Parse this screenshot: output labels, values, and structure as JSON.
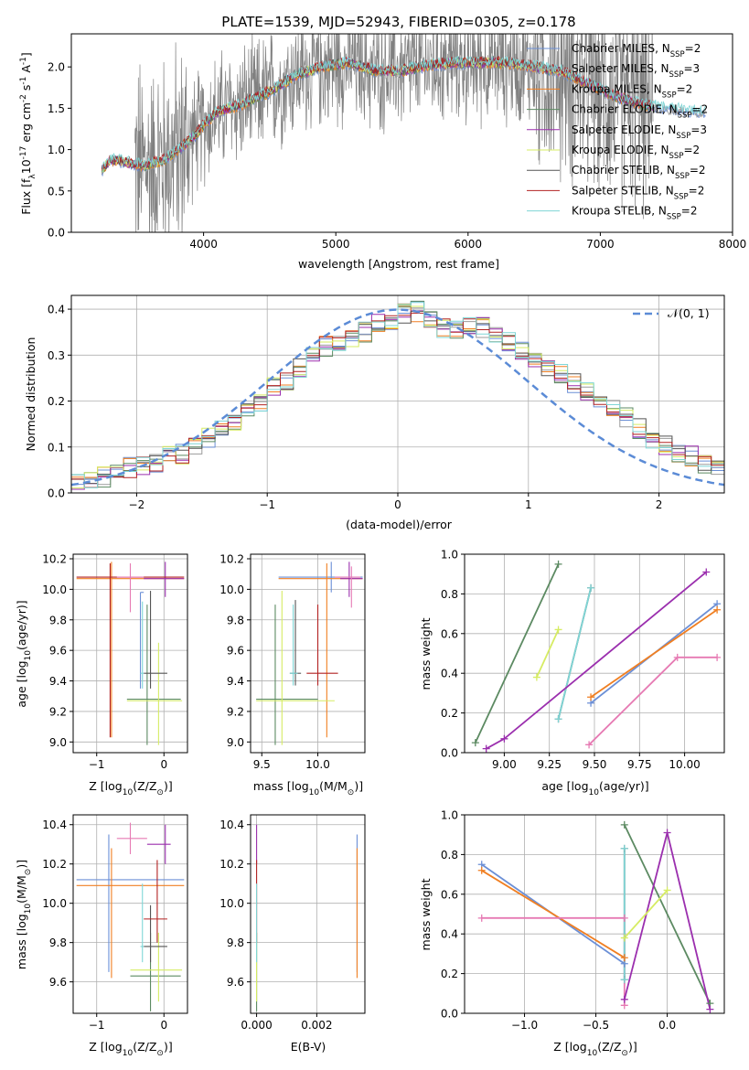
{
  "figure": {
    "title": "PLATE=1539, MJD=52943, FIBERID=0305, z=0.178"
  },
  "colors": {
    "cm": "#6b8fd6",
    "sm": "#9b9b9b",
    "km": "#f07f22",
    "ce": "#5c8a62",
    "se": "#9b2fae",
    "ke": "#d6ec63",
    "cs": "#555555",
    "ss": "#b22222",
    "ks": "#7fd6d6",
    "pink": "#e67ab3",
    "data": "#808080",
    "normal": "#5b8bd6"
  },
  "chart_data": [
    {
      "id": "spectrum",
      "type": "line",
      "xlabel": "wavelength [Angstrom, rest frame]",
      "ylabel": "Flux [f$_\\lambda$10$^{-17}$ erg cm$^{-2}$ s$^{-1}$ A$^{-1}$]",
      "xlim": [
        3000,
        8000
      ],
      "ylim": [
        0,
        2.4
      ],
      "xticks": [
        "4000",
        "5000",
        "6000",
        "7000",
        "8000"
      ],
      "yticks": [
        "0.0",
        "0.5",
        "1.0",
        "1.5",
        "2.0"
      ],
      "legend_placement": "right",
      "legend": [
        {
          "key": "cm",
          "label": "Chabrier MILES, N",
          "sub": "SSP",
          "n": "=2"
        },
        {
          "key": "sm",
          "label": "Salpeter MILES, N",
          "sub": "SSP",
          "n": "=3"
        },
        {
          "key": "km",
          "label": "Kroupa MILES, N",
          "sub": "SSP",
          "n": "=2"
        },
        {
          "key": "ce",
          "label": "Chabrier ELODIE, N",
          "sub": "SSP",
          "n": "=2"
        },
        {
          "key": "se",
          "label": "Salpeter ELODIE, N",
          "sub": "SSP",
          "n": "=3"
        },
        {
          "key": "ke",
          "label": "Kroupa ELODIE, N",
          "sub": "SSP",
          "n": "=2"
        },
        {
          "key": "cs",
          "label": "Chabrier STELIB, N",
          "sub": "SSP",
          "n": "=2"
        },
        {
          "key": "ss",
          "label": "Salpeter STELIB, N",
          "sub": "SSP",
          "n": "=2"
        },
        {
          "key": "ks",
          "label": "Kroupa STELIB, N",
          "sub": "SSP",
          "n": "=2"
        }
      ],
      "model_trend": [
        [
          3230,
          0.75
        ],
        [
          3300,
          0.88
        ],
        [
          3400,
          0.85
        ],
        [
          3550,
          0.8
        ],
        [
          3700,
          0.87
        ],
        [
          3850,
          1.05
        ],
        [
          3950,
          1.2
        ],
        [
          4000,
          1.3
        ],
        [
          4100,
          1.45
        ],
        [
          4300,
          1.55
        ],
        [
          4500,
          1.7
        ],
        [
          4700,
          1.9
        ],
        [
          4900,
          2.0
        ],
        [
          5100,
          2.05
        ],
        [
          5300,
          1.95
        ],
        [
          5500,
          1.95
        ],
        [
          5700,
          2.02
        ],
        [
          5900,
          2.05
        ],
        [
          6100,
          2.05
        ],
        [
          6300,
          2.05
        ],
        [
          6500,
          2.0
        ],
        [
          6700,
          1.95
        ],
        [
          6900,
          1.8
        ],
        [
          7100,
          1.65
        ],
        [
          7300,
          1.55
        ],
        [
          7500,
          1.5
        ],
        [
          7800,
          1.45
        ]
      ],
      "data_extent": [
        3480,
        7400
      ]
    },
    {
      "id": "residual_hist",
      "type": "line",
      "xlabel": "(data-model)/error",
      "ylabel": "Normed distribution",
      "xlim": [
        -2.5,
        2.5
      ],
      "ylim": [
        0,
        0.43
      ],
      "xticks": [
        "−2",
        "−1",
        "0",
        "1",
        "2"
      ],
      "yticks": [
        "0.0",
        "0.1",
        "0.2",
        "0.3",
        "0.4"
      ],
      "legend": [
        {
          "label": "𝒩(0, 1)"
        }
      ],
      "legend_placement": "top-right",
      "bin_width": 0.1,
      "base_hist": [
        0.025,
        0.03,
        0.035,
        0.05,
        0.055,
        0.06,
        0.065,
        0.08,
        0.085,
        0.1,
        0.12,
        0.14,
        0.15,
        0.175,
        0.2,
        0.23,
        0.245,
        0.27,
        0.3,
        0.32,
        0.33,
        0.34,
        0.35,
        0.37,
        0.375,
        0.39,
        0.395,
        0.38,
        0.36,
        0.355,
        0.36,
        0.36,
        0.35,
        0.33,
        0.31,
        0.29,
        0.27,
        0.26,
        0.24,
        0.225,
        0.2,
        0.185,
        0.165,
        0.14,
        0.12,
        0.105,
        0.09,
        0.08,
        0.065,
        0.055
      ]
    },
    {
      "id": "age_vs_Z",
      "type": "scatter",
      "xlabel": "Z [log$_{10}$(Z/Z$_\\odot$)]",
      "ylabel": "age  [log$_{10}$(age/yr)]",
      "xlim": [
        -1.35,
        0.35
      ],
      "ylim": [
        8.93,
        10.23
      ],
      "xticks": [
        -1,
        0
      ],
      "yticks": [
        9.0,
        9.2,
        9.4,
        9.6,
        9.8,
        10.0,
        10.2
      ],
      "points": [
        {
          "c": "cm",
          "x": -0.35,
          "y": 9.98,
          "xe": [
            -0.35,
            -0.3
          ],
          "ye": [
            9.35,
            9.98
          ]
        },
        {
          "c": "km",
          "x": -0.78,
          "y": 10.07,
          "xe": [
            -1.3,
            0.3
          ],
          "ye": [
            9.03,
            10.18
          ]
        },
        {
          "c": "ce",
          "x": -0.25,
          "y": 9.28,
          "xe": [
            -0.55,
            0.25
          ],
          "ye": [
            8.98,
            9.9
          ]
        },
        {
          "c": "se",
          "x": 0.02,
          "y": 10.07,
          "xe": [
            -0.3,
            0.3
          ],
          "ye": [
            9.95,
            10.18
          ]
        },
        {
          "c": "ke",
          "x": -0.08,
          "y": 9.27,
          "xe": [
            -0.55,
            0.27
          ],
          "ye": [
            8.98,
            9.65
          ]
        },
        {
          "c": "cs",
          "x": -0.2,
          "y": 9.45,
          "xe": [
            -0.3,
            0.05
          ],
          "ye": [
            9.35,
            9.99
          ]
        },
        {
          "c": "ss",
          "x": -0.8,
          "y": 10.08,
          "xe": [
            -1.3,
            0.3
          ],
          "ye": [
            9.03,
            10.17
          ]
        },
        {
          "c": "ks",
          "x": -0.32,
          "y": 9.45,
          "xe": [
            -0.35,
            -0.3
          ],
          "ye": [
            9.35,
            9.92
          ]
        },
        {
          "c": "pink",
          "x": -0.5,
          "y": 10.08,
          "xe": [
            -0.7,
            -0.3
          ],
          "ye": [
            9.85,
            10.17
          ]
        }
      ]
    },
    {
      "id": "age_vs_mass",
      "type": "scatter",
      "xlabel": "mass [log$_{10}$(M/M$_\\odot$)]",
      "ylabel": "",
      "xlim": [
        9.4,
        10.42
      ],
      "ylim": [
        8.93,
        10.23
      ],
      "xticks": [
        9.5,
        10.0
      ],
      "yticks": [
        9.0,
        9.2,
        9.4,
        9.6,
        9.8,
        10.0,
        10.2
      ],
      "points": [
        {
          "c": "cm",
          "x": 10.12,
          "y": 10.08,
          "xe": [
            9.65,
            10.4
          ],
          "ye": [
            9.98,
            10.18
          ]
        },
        {
          "c": "km",
          "x": 10.08,
          "y": 10.07,
          "xe": [
            9.65,
            10.4
          ],
          "ye": [
            9.03,
            10.17
          ]
        },
        {
          "c": "ce",
          "x": 9.62,
          "y": 9.28,
          "xe": [
            9.45,
            10.0
          ],
          "ye": [
            8.98,
            9.9
          ]
        },
        {
          "c": "se",
          "x": 10.28,
          "y": 10.07,
          "xe": [
            10.2,
            10.4
          ],
          "ye": [
            9.95,
            10.18
          ]
        },
        {
          "c": "ke",
          "x": 9.68,
          "y": 9.27,
          "xe": [
            9.45,
            10.15
          ],
          "ye": [
            8.98,
            9.99
          ]
        },
        {
          "c": "cs",
          "x": 9.8,
          "y": 9.45,
          "xe": [
            9.75,
            9.85
          ],
          "ye": [
            9.37,
            9.93
          ]
        },
        {
          "c": "ss",
          "x": 10.0,
          "y": 9.45,
          "xe": [
            9.9,
            10.18
          ],
          "ye": [
            9.37,
            9.9
          ]
        },
        {
          "c": "ks",
          "x": 9.78,
          "y": 9.45,
          "xe": [
            9.75,
            9.82
          ],
          "ye": [
            9.37,
            9.9
          ]
        },
        {
          "c": "pink",
          "x": 10.3,
          "y": 10.08,
          "xe": [
            10.15,
            10.38
          ],
          "ye": [
            9.88,
            10.15
          ]
        }
      ]
    },
    {
      "id": "weight_vs_age",
      "type": "line",
      "xlabel": "age  [log$_{10}$(age/yr)]",
      "ylabel": "mass weight",
      "xlim": [
        8.78,
        10.22
      ],
      "ylim": [
        0,
        1
      ],
      "xticks": [
        9.0,
        9.25,
        9.5,
        9.75,
        10.0
      ],
      "yticks": [
        0.0,
        0.2,
        0.4,
        0.6,
        0.8,
        1.0
      ],
      "series": [
        {
          "c": "ce",
          "points": [
            [
              8.84,
              0.05
            ],
            [
              9.3,
              0.95
            ]
          ]
        },
        {
          "c": "ke",
          "points": [
            [
              9.18,
              0.38
            ],
            [
              9.3,
              0.62
            ]
          ]
        },
        {
          "c": "cs",
          "points": [
            [
              9.3,
              0.17
            ],
            [
              9.48,
              0.83
            ]
          ]
        },
        {
          "c": "ks",
          "points": [
            [
              9.3,
              0.17
            ],
            [
              9.48,
              0.83
            ]
          ]
        },
        {
          "c": "cm",
          "points": [
            [
              9.48,
              0.25
            ],
            [
              10.18,
              0.75
            ]
          ]
        },
        {
          "c": "km",
          "points": [
            [
              9.48,
              0.28
            ],
            [
              10.18,
              0.72
            ]
          ]
        },
        {
          "c": "se",
          "points": [
            [
              8.9,
              0.02
            ],
            [
              9.0,
              0.07
            ],
            [
              10.12,
              0.91
            ]
          ]
        },
        {
          "c": "pink",
          "points": [
            [
              9.47,
              0.04
            ],
            [
              9.96,
              0.48
            ],
            [
              10.18,
              0.48
            ]
          ]
        }
      ]
    },
    {
      "id": "mass_vs_Z",
      "type": "scatter",
      "xlabel": "Z [log$_{10}$(Z/Z$_\\odot$)]",
      "ylabel": "mass [log$_{10}$(M/M$_\\odot$)]",
      "xlim": [
        -1.35,
        0.35
      ],
      "ylim": [
        9.44,
        10.45
      ],
      "xticks": [
        -1,
        0
      ],
      "yticks": [
        9.6,
        9.8,
        10.0,
        10.2,
        10.4
      ],
      "points": [
        {
          "c": "cm",
          "x": -0.82,
          "y": 10.12,
          "xe": [
            -1.3,
            0.3
          ],
          "ye": [
            9.65,
            10.35
          ]
        },
        {
          "c": "km",
          "x": -0.78,
          "y": 10.09,
          "xe": [
            -1.3,
            0.3
          ],
          "ye": [
            9.62,
            10.28
          ]
        },
        {
          "c": "ce",
          "x": -0.2,
          "y": 9.63,
          "xe": [
            -0.5,
            0.25
          ],
          "ye": [
            9.45,
            9.85
          ]
        },
        {
          "c": "se",
          "x": 0.02,
          "y": 10.3,
          "xe": [
            -0.25,
            0.1
          ],
          "ye": [
            10.2,
            10.4
          ]
        },
        {
          "c": "ke",
          "x": -0.08,
          "y": 9.66,
          "xe": [
            -0.5,
            0.27
          ],
          "ye": [
            9.5,
            9.85
          ]
        },
        {
          "c": "cs",
          "x": -0.2,
          "y": 9.78,
          "xe": [
            -0.3,
            0.05
          ],
          "ye": [
            9.7,
            9.99
          ]
        },
        {
          "c": "ss",
          "x": -0.1,
          "y": 9.92,
          "xe": [
            -0.3,
            0.05
          ],
          "ye": [
            9.8,
            10.22
          ]
        },
        {
          "c": "ks",
          "x": -0.32,
          "y": 9.78,
          "xe": [
            -0.35,
            -0.3
          ],
          "ye": [
            9.7,
            10.1
          ]
        },
        {
          "c": "pink",
          "x": -0.5,
          "y": 10.33,
          "xe": [
            -0.7,
            -0.25
          ],
          "ye": [
            10.25,
            10.41
          ]
        }
      ]
    },
    {
      "id": "mass_vs_ebv",
      "type": "scatter",
      "xlabel": "E(B-V)",
      "ylabel": "",
      "xlim": [
        -0.0002,
        0.0036
      ],
      "ylim": [
        9.44,
        10.45
      ],
      "xticks": [
        "0.000",
        "0.002"
      ],
      "yticks": [
        9.6,
        9.8,
        10.0,
        10.2,
        10.4
      ],
      "points": [
        {
          "c": "cm",
          "x": 0.00334,
          "ye": [
            9.65,
            10.35
          ]
        },
        {
          "c": "km",
          "x": 0.00334,
          "ye": [
            9.62,
            10.28
          ]
        },
        {
          "c": "ce",
          "x": 0.0,
          "ye": [
            9.45,
            9.85
          ]
        },
        {
          "c": "se",
          "x": 0.0,
          "ye": [
            10.2,
            10.4
          ]
        },
        {
          "c": "ke",
          "x": 0.0,
          "ye": [
            9.5,
            9.85
          ]
        },
        {
          "c": "ss",
          "x": 0.0,
          "ye": [
            9.8,
            10.22
          ]
        },
        {
          "c": "ks",
          "x": 0.0,
          "ye": [
            9.7,
            10.1
          ]
        }
      ]
    },
    {
      "id": "weight_vs_Z",
      "type": "line",
      "xlabel": "Z [log$_{10}$(Z/Z$_\\odot$)]",
      "ylabel": "mass weight",
      "xlim": [
        -1.42,
        0.4
      ],
      "ylim": [
        0,
        1
      ],
      "xticks": [
        "−1.0",
        "−0.5",
        "0.0"
      ],
      "yticks": [
        "0.0",
        "0.2",
        "0.4",
        "0.6",
        "0.8",
        "1.0"
      ],
      "series": [
        {
          "c": "cm",
          "points": [
            [
              -1.3,
              0.75
            ],
            [
              -0.3,
              0.25
            ]
          ]
        },
        {
          "c": "km",
          "points": [
            [
              -1.3,
              0.72
            ],
            [
              -0.3,
              0.28
            ]
          ]
        },
        {
          "c": "pink",
          "points": [
            [
              -1.3,
              0.48
            ],
            [
              -0.3,
              0.48
            ],
            [
              -0.3,
              0.04
            ]
          ]
        },
        {
          "c": "ce",
          "points": [
            [
              -0.3,
              0.95
            ],
            [
              0.3,
              0.05
            ]
          ]
        },
        {
          "c": "se",
          "points": [
            [
              -0.3,
              0.07
            ],
            [
              0.0,
              0.91
            ],
            [
              0.3,
              0.02
            ]
          ]
        },
        {
          "c": "ke",
          "points": [
            [
              -0.3,
              0.38
            ],
            [
              0.0,
              0.62
            ]
          ]
        },
        {
          "c": "cs",
          "points": [
            [
              -0.3,
              0.17
            ],
            [
              -0.3,
              0.83
            ]
          ]
        },
        {
          "c": "ks",
          "points": [
            [
              -0.3,
              0.17
            ],
            [
              -0.3,
              0.83
            ]
          ]
        }
      ]
    }
  ]
}
